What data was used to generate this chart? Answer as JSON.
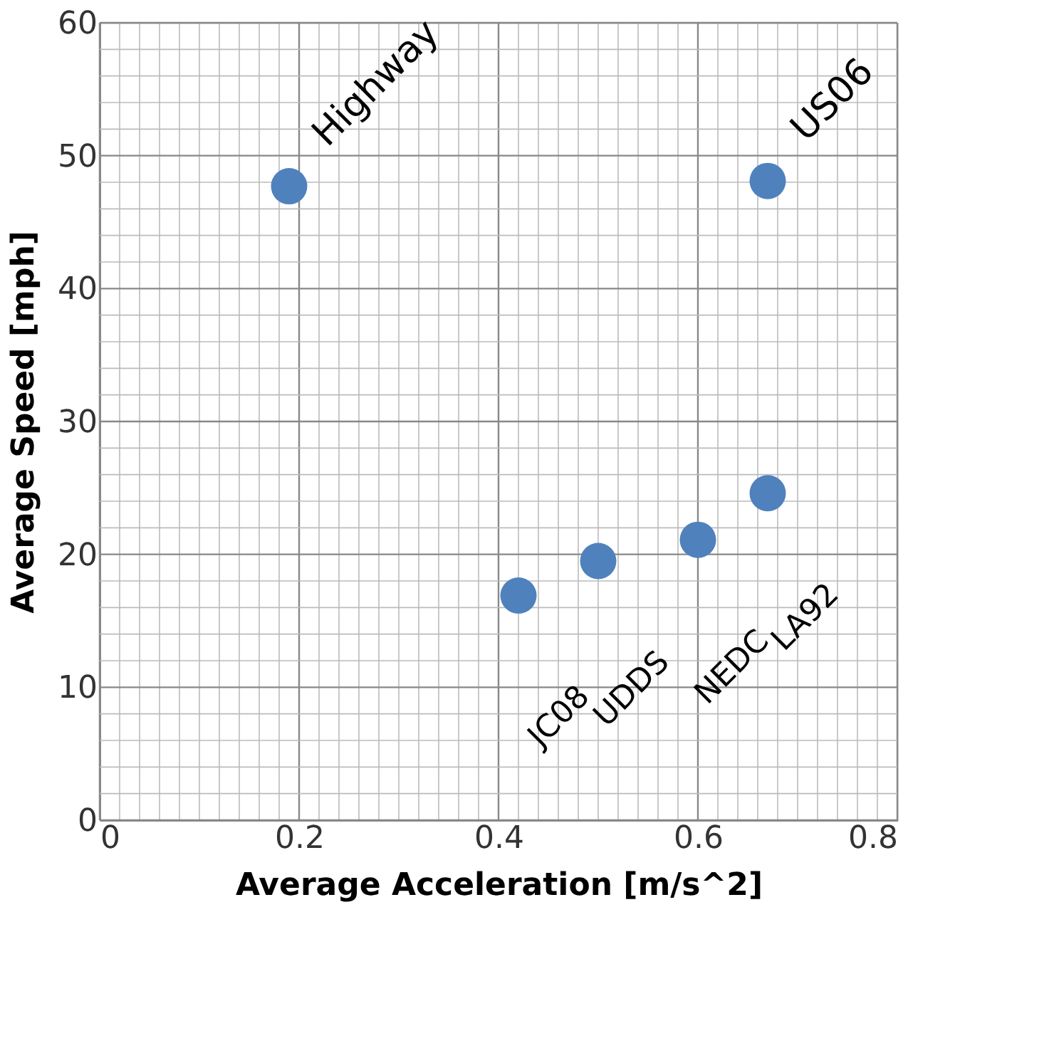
{
  "chart_data": {
    "type": "scatter",
    "xlabel": "Average Acceleration [m/s^2]",
    "ylabel": "Average Speed [mph]",
    "x": [
      0.19,
      0.67,
      0.67,
      0.6,
      0.5,
      0.42
    ],
    "series": [
      {
        "color": "#4f81bd",
        "values": [
          47.7,
          48.1,
          24.6,
          21.1,
          19.5,
          16.9
        ]
      }
    ],
    "annotations": [
      {
        "text": "Highway",
        "x": 0.19,
        "y": 47.7
      },
      {
        "text": "US06",
        "x": 0.67,
        "y": 48.1
      },
      {
        "text": "LA92",
        "x": 0.67,
        "y": 24.6
      },
      {
        "text": "NEDC",
        "x": 0.6,
        "y": 21.1
      },
      {
        "text": "UDDS",
        "x": 0.5,
        "y": 19.5
      },
      {
        "text": "JC08",
        "x": 0.42,
        "y": 16.9
      }
    ],
    "xlim": [
      0,
      0.8
    ],
    "ylim": [
      0,
      60
    ],
    "xticks": [
      0,
      {
        "value": 0.02,
        "label": null
      },
      {
        "value": 0.04,
        "label": null
      },
      {
        "value": 0.06,
        "label": null
      },
      {
        "value": 0.08,
        "label": null
      },
      {
        "value": 0.1,
        "label": null
      },
      {
        "value": 0.12,
        "label": null
      },
      {
        "value": 0.14,
        "label": null
      },
      {
        "value": 0.16,
        "label": null
      },
      {
        "value": 0.18,
        "label": null
      },
      0.2,
      {
        "value": 0.22,
        "label": null
      },
      {
        "value": 0.24,
        "label": null
      },
      {
        "value": 0.26,
        "label": null
      },
      {
        "value": 0.28,
        "label": null
      },
      {
        "value": 0.3,
        "label": null
      },
      {
        "value": 0.32,
        "label": null
      },
      {
        "value": 0.34,
        "label": null
      },
      {
        "value": 0.36,
        "label": null
      },
      {
        "value": 0.38,
        "label": null
      },
      0.4,
      {
        "value": 0.42,
        "label": null
      },
      {
        "value": 0.44,
        "label": null
      },
      {
        "value": 0.46,
        "label": null
      },
      {
        "value": 0.48,
        "label": null
      },
      {
        "value": 0.5,
        "label": null
      },
      {
        "value": 0.52,
        "label": null
      },
      {
        "value": 0.54,
        "label": null
      },
      {
        "value": 0.56,
        "label": null
      },
      {
        "value": 0.58,
        "label": null
      },
      0.6,
      {
        "value": 0.62,
        "label": null
      },
      {
        "value": 0.64,
        "label": null
      },
      {
        "value": 0.66,
        "label": null
      },
      {
        "value": 0.68,
        "label": null
      },
      {
        "value": 0.7,
        "label": null
      },
      {
        "value": 0.72,
        "label": null
      },
      {
        "value": 0.74,
        "label": null
      },
      {
        "value": 0.76,
        "label": null
      },
      {
        "value": 0.78,
        "label": null
      },
      0.8
    ],
    "yticks": [
      0,
      {
        "value": 2,
        "label": null
      },
      {
        "value": 4,
        "label": null
      },
      {
        "value": 6,
        "label": null
      },
      {
        "value": 8,
        "label": null
      },
      10,
      {
        "value": 12,
        "label": null
      },
      {
        "value": 14,
        "label": null
      },
      {
        "value": 16,
        "label": null
      },
      {
        "value": 18,
        "label": null
      },
      20,
      {
        "value": 22,
        "label": null
      },
      {
        "value": 24,
        "label": null
      },
      {
        "value": 26,
        "label": null
      },
      {
        "value": 28,
        "label": null
      },
      30,
      {
        "value": 32,
        "label": null
      },
      {
        "value": 34,
        "label": null
      },
      {
        "value": 36,
        "label": null
      },
      {
        "value": 38,
        "label": null
      },
      40,
      {
        "value": 42,
        "label": null
      },
      {
        "value": 44,
        "label": null
      },
      {
        "value": 46,
        "label": null
      },
      {
        "value": 48,
        "label": null
      },
      50,
      {
        "value": 52,
        "label": null
      },
      {
        "value": 54,
        "label": null
      },
      {
        "value": 56,
        "label": null
      },
      {
        "value": 58,
        "label": null
      },
      60
    ],
    "grid": true,
    "marker": "circle"
  }
}
